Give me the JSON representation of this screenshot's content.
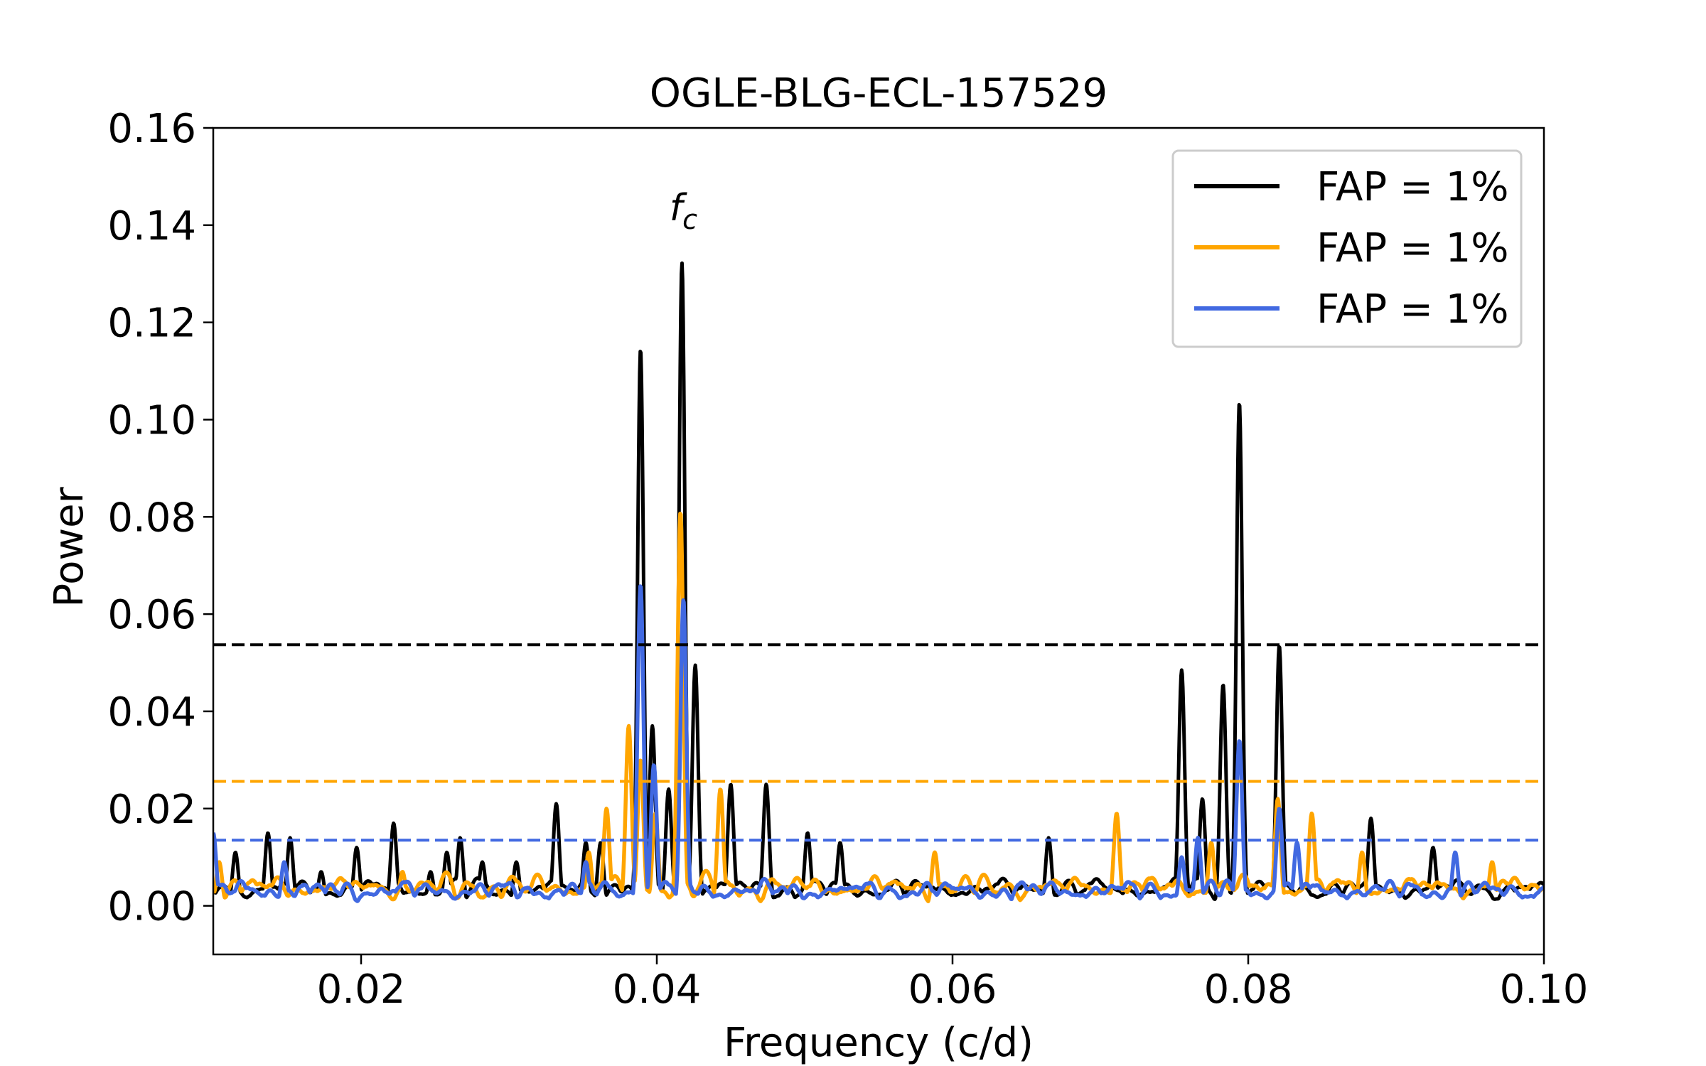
{
  "chart_data": {
    "type": "line",
    "title": "OGLE-BLG-ECL-157529",
    "xlabel": "Frequency (c/d)",
    "ylabel": "Power",
    "xlim": [
      0.01,
      0.1
    ],
    "ylim": [
      -0.01,
      0.16
    ],
    "xticks": [
      0.02,
      0.04,
      0.06,
      0.08,
      0.1
    ],
    "xtick_labels": [
      "0.02",
      "0.04",
      "0.06",
      "0.08",
      "0.10"
    ],
    "yticks": [
      0.0,
      0.02,
      0.04,
      0.06,
      0.08,
      0.1,
      0.12,
      0.14,
      0.16
    ],
    "ytick_labels": [
      "0.00",
      "0.02",
      "0.04",
      "0.06",
      "0.08",
      "0.10",
      "0.12",
      "0.14",
      "0.16"
    ],
    "grid": false,
    "legend_position": "top-right",
    "annotation": {
      "text_main": "f",
      "text_sub": "c",
      "x": 0.0418,
      "y": 0.141
    },
    "series": [
      {
        "name": "FAP = 1%",
        "color": "#000000",
        "fap_level": 0.0537,
        "peaks": [
          [
            0.0115,
            0.011
          ],
          [
            0.0137,
            0.015
          ],
          [
            0.0152,
            0.014
          ],
          [
            0.0173,
            0.007
          ],
          [
            0.0197,
            0.012
          ],
          [
            0.0222,
            0.017
          ],
          [
            0.0247,
            0.007
          ],
          [
            0.0258,
            0.011
          ],
          [
            0.0267,
            0.014
          ],
          [
            0.0282,
            0.009
          ],
          [
            0.0305,
            0.009
          ],
          [
            0.0332,
            0.021
          ],
          [
            0.0352,
            0.013
          ],
          [
            0.0362,
            0.013
          ],
          [
            0.0389,
            0.1145
          ],
          [
            0.0397,
            0.037
          ],
          [
            0.0408,
            0.024
          ],
          [
            0.0417,
            0.1322
          ],
          [
            0.0426,
            0.0495
          ],
          [
            0.045,
            0.025
          ],
          [
            0.0474,
            0.025
          ],
          [
            0.0502,
            0.015
          ],
          [
            0.0524,
            0.013
          ],
          [
            0.0665,
            0.014
          ],
          [
            0.0755,
            0.0485
          ],
          [
            0.0769,
            0.022
          ],
          [
            0.0783,
            0.0455
          ],
          [
            0.0794,
            0.1035
          ],
          [
            0.0821,
            0.0535
          ],
          [
            0.0883,
            0.018
          ],
          [
            0.0925,
            0.012
          ]
        ]
      },
      {
        "name": "FAP = 1%",
        "color": "#FFA500",
        "fap_level": 0.0256,
        "peaks": [
          [
            0.0104,
            0.009
          ],
          [
            0.0228,
            0.007
          ],
          [
            0.0354,
            0.011
          ],
          [
            0.0366,
            0.02
          ],
          [
            0.0381,
            0.037
          ],
          [
            0.0389,
            0.03
          ],
          [
            0.0399,
            0.019
          ],
          [
            0.0416,
            0.081
          ],
          [
            0.0443,
            0.024
          ],
          [
            0.0588,
            0.011
          ],
          [
            0.0711,
            0.019
          ],
          [
            0.0775,
            0.013
          ],
          [
            0.082,
            0.022
          ],
          [
            0.0843,
            0.019
          ],
          [
            0.0877,
            0.011
          ],
          [
            0.0965,
            0.009
          ]
        ]
      },
      {
        "name": "FAP = 1%",
        "color": "#4169E1",
        "fap_level": 0.0135,
        "peaks": [
          [
            0.01,
            0.015
          ],
          [
            0.0148,
            0.009
          ],
          [
            0.0352,
            0.009
          ],
          [
            0.0389,
            0.066
          ],
          [
            0.0398,
            0.029
          ],
          [
            0.0418,
            0.063
          ],
          [
            0.0755,
            0.01
          ],
          [
            0.0766,
            0.014
          ],
          [
            0.0794,
            0.034
          ],
          [
            0.0821,
            0.02
          ],
          [
            0.0833,
            0.013
          ],
          [
            0.094,
            0.011
          ]
        ]
      }
    ]
  }
}
